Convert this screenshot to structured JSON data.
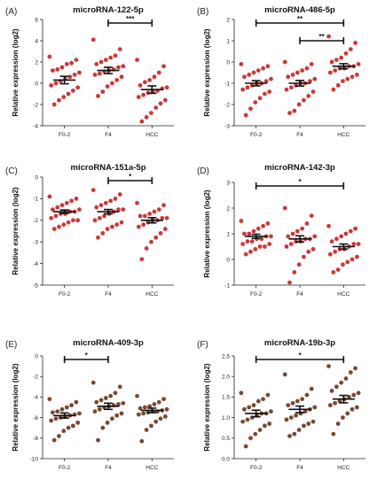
{
  "chart_data": [
    {
      "type": "scatter",
      "panel": "(A)",
      "title": "microRNA-122-5p",
      "ylabel": "Relative expression",
      "ylabel_unit": "(log2)",
      "categories": [
        "F0-2",
        "F4",
        "HCC"
      ],
      "ylim": [
        -4,
        6
      ],
      "yticks": [
        -4,
        -2,
        0,
        2,
        4,
        6
      ],
      "dot_color": "#c62828",
      "series": [
        {
          "values": [
            2.5,
            2.2,
            1.9,
            1.8,
            1.5,
            1.3,
            1.2,
            1.0,
            0.8,
            0.6,
            0.4,
            0.2,
            0.0,
            -0.2,
            -0.4,
            -0.7,
            -1.0,
            -1.3,
            -1.6,
            -2.0
          ],
          "mean": 0.3,
          "sem": 0.35
        },
        {
          "values": [
            4.1,
            3.2,
            2.6,
            2.4,
            2.2,
            2.0,
            1.8,
            1.6,
            1.5,
            1.3,
            1.2,
            1.1,
            0.9,
            0.8,
            0.6,
            0.3,
            0.0,
            -0.3,
            -0.8,
            -1.2
          ],
          "mean": 1.2,
          "sem": 0.3
        },
        {
          "values": [
            2.2,
            1.6,
            1.0,
            0.6,
            0.3,
            0.1,
            -0.2,
            -0.4,
            -0.5,
            -0.7,
            -0.8,
            -0.9,
            -1.1,
            -1.3,
            -1.6,
            -1.9,
            -2.3,
            -2.8,
            -3.2,
            -3.6
          ],
          "mean": -0.6,
          "sem": 0.35
        }
      ],
      "significance": [
        {
          "from": 1,
          "to": 2,
          "label": "***"
        }
      ]
    },
    {
      "type": "scatter",
      "panel": "(B)",
      "title": "microRNA-486-5p",
      "ylabel": "Relative expression",
      "ylabel_unit": "(log2)",
      "categories": [
        "F0-2",
        "F4",
        "HCC"
      ],
      "ylim": [
        -3,
        2
      ],
      "yticks": [
        -3,
        -2,
        -1,
        0,
        1,
        2
      ],
      "dot_color": "#c62828",
      "series": [
        {
          "values": [
            -0.1,
            -0.2,
            -0.3,
            -0.4,
            -0.5,
            -0.6,
            -0.7,
            -0.8,
            -0.9,
            -1.0,
            -1.0,
            -1.1,
            -1.2,
            -1.3,
            -1.4,
            -1.5,
            -1.7,
            -1.9,
            -2.2,
            -2.5
          ],
          "mean": -1.0,
          "sem": 0.12
        },
        {
          "values": [
            0.0,
            -0.1,
            -0.3,
            -0.4,
            -0.5,
            -0.6,
            -0.7,
            -0.8,
            -0.9,
            -1.0,
            -1.0,
            -1.1,
            -1.2,
            -1.3,
            -1.4,
            -1.6,
            -1.8,
            -2.0,
            -2.3,
            -2.4
          ],
          "mean": -1.0,
          "sem": 0.13
        },
        {
          "values": [
            1.2,
            0.9,
            0.6,
            0.4,
            0.2,
            0.1,
            0.0,
            -0.1,
            -0.2,
            -0.2,
            -0.3,
            -0.3,
            -0.4,
            -0.5,
            -0.6,
            -0.7,
            -0.8,
            -0.9,
            -1.1,
            -1.3
          ],
          "mean": -0.2,
          "sem": 0.12
        }
      ],
      "significance": [
        {
          "from": 0,
          "to": 2,
          "label": "**"
        },
        {
          "from": 1,
          "to": 2,
          "label": "**"
        }
      ]
    },
    {
      "type": "scatter",
      "panel": "(C)",
      "title": "microRNA-151a-5p",
      "ylabel": "Relative expression",
      "ylabel_unit": "(log2)",
      "categories": [
        "F0-2",
        "F4",
        "HCC"
      ],
      "ylim": [
        -5,
        0
      ],
      "yticks": [
        -5,
        -4,
        -3,
        -2,
        -1,
        0
      ],
      "dot_color": "#c62828",
      "series": [
        {
          "values": [
            -0.9,
            -1.0,
            -1.1,
            -1.2,
            -1.3,
            -1.4,
            -1.5,
            -1.5,
            -1.6,
            -1.6,
            -1.7,
            -1.7,
            -1.8,
            -1.9,
            -2.0,
            -2.0,
            -2.1,
            -2.2,
            -2.3,
            -2.4
          ],
          "mean": -1.6,
          "sem": 0.08
        },
        {
          "values": [
            -0.6,
            -0.8,
            -1.0,
            -1.1,
            -1.2,
            -1.3,
            -1.4,
            -1.5,
            -1.5,
            -1.6,
            -1.7,
            -1.8,
            -1.9,
            -2.0,
            -2.1,
            -2.2,
            -2.3,
            -2.4,
            -2.6,
            -2.8
          ],
          "mean": -1.6,
          "sem": 0.1
        },
        {
          "values": [
            -1.2,
            -1.3,
            -1.5,
            -1.6,
            -1.7,
            -1.8,
            -1.8,
            -1.9,
            -1.9,
            -2.0,
            -2.0,
            -2.1,
            -2.2,
            -2.3,
            -2.4,
            -2.6,
            -2.8,
            -3.0,
            -3.3,
            -3.8
          ],
          "mean": -2.0,
          "sem": 0.12
        }
      ],
      "significance": [
        {
          "from": 1,
          "to": 2,
          "label": "*"
        }
      ]
    },
    {
      "type": "scatter",
      "panel": "(D)",
      "title": "microRNA-142-3p",
      "ylabel": "Relative expression",
      "ylabel_unit": "(log2)",
      "categories": [
        "F0-2",
        "F4",
        "HCC"
      ],
      "ylim": [
        -1,
        3
      ],
      "yticks": [
        -1,
        0,
        1,
        2,
        3
      ],
      "dot_color": "#c62828",
      "series": [
        {
          "values": [
            1.5,
            1.4,
            1.3,
            1.2,
            1.1,
            1.0,
            1.0,
            0.9,
            0.9,
            0.8,
            0.8,
            0.7,
            0.7,
            0.6,
            0.6,
            0.5,
            0.5,
            0.4,
            0.3,
            0.2
          ],
          "mean": 0.9,
          "sem": 0.08
        },
        {
          "values": [
            2.0,
            1.7,
            1.4,
            1.2,
            1.1,
            1.0,
            0.9,
            0.9,
            0.8,
            0.8,
            0.7,
            0.7,
            0.6,
            0.5,
            0.4,
            0.3,
            0.1,
            -0.2,
            -0.5,
            -0.9
          ],
          "mean": 0.8,
          "sem": 0.12
        },
        {
          "values": [
            1.3,
            1.2,
            1.1,
            1.0,
            0.9,
            0.8,
            0.7,
            0.6,
            0.6,
            0.5,
            0.4,
            0.4,
            0.3,
            0.2,
            0.1,
            0.0,
            -0.1,
            -0.2,
            -0.4,
            -0.5
          ],
          "mean": 0.5,
          "sem": 0.1
        }
      ],
      "significance": [
        {
          "from": 0,
          "to": 2,
          "label": "*"
        }
      ]
    },
    {
      "type": "scatter",
      "panel": "(E)",
      "title": "microRNA-409-3p",
      "ylabel": "Relative expression",
      "ylabel_unit": "(log2)",
      "categories": [
        "F0-2",
        "F4",
        "HCC"
      ],
      "ylim": [
        -10,
        0
      ],
      "yticks": [
        -10,
        -8,
        -6,
        -4,
        -2,
        0
      ],
      "dot_color": "#6d3a1f",
      "series": [
        {
          "values": [
            -4.2,
            -4.5,
            -4.8,
            -5.0,
            -5.2,
            -5.4,
            -5.5,
            -5.6,
            -5.7,
            -5.8,
            -5.9,
            -6.0,
            -6.1,
            -6.3,
            -6.5,
            -6.8,
            -7.0,
            -7.3,
            -7.8,
            -8.2
          ],
          "mean": -5.8,
          "sem": 0.25
        },
        {
          "values": [
            -2.6,
            -3.0,
            -3.6,
            -3.9,
            -4.1,
            -4.3,
            -4.5,
            -4.6,
            -4.7,
            -4.8,
            -4.9,
            -5.0,
            -5.2,
            -5.4,
            -5.6,
            -5.8,
            -6.1,
            -6.5,
            -7.0,
            -8.2
          ],
          "mean": -4.9,
          "sem": 0.3
        },
        {
          "values": [
            -3.9,
            -4.2,
            -4.5,
            -4.7,
            -4.9,
            -5.0,
            -5.1,
            -5.2,
            -5.3,
            -5.4,
            -5.4,
            -5.5,
            -5.6,
            -5.7,
            -5.9,
            -6.1,
            -6.4,
            -6.8,
            -7.2,
            -8.3
          ],
          "mean": -5.3,
          "sem": 0.22
        }
      ],
      "significance": [
        {
          "from": 0,
          "to": 1,
          "label": "*"
        }
      ]
    },
    {
      "type": "scatter",
      "panel": "(F)",
      "title": "microRNA-19b-3p",
      "ylabel": "Relative expression",
      "ylabel_unit": "(log2)",
      "categories": [
        "F0-2",
        "F4",
        "HCC"
      ],
      "ylim": [
        0.0,
        2.5
      ],
      "yticks": [
        0.0,
        0.5,
        1.0,
        1.5,
        2.0,
        2.5
      ],
      "dot_color": "#6d3a1f",
      "series": [
        {
          "values": [
            1.6,
            1.55,
            1.45,
            1.4,
            1.3,
            1.25,
            1.2,
            1.15,
            1.1,
            1.1,
            1.05,
            1.0,
            0.95,
            0.9,
            0.85,
            0.8,
            0.7,
            0.6,
            0.5,
            0.3
          ],
          "mean": 1.1,
          "sem": 0.08
        },
        {
          "values": [
            2.05,
            1.7,
            1.55,
            1.45,
            1.4,
            1.35,
            1.3,
            1.25,
            1.2,
            1.15,
            1.1,
            1.05,
            1.0,
            0.95,
            0.9,
            0.85,
            0.8,
            0.7,
            0.6,
            0.55
          ],
          "mean": 1.2,
          "sem": 0.08
        },
        {
          "values": [
            2.25,
            2.2,
            2.1,
            1.95,
            1.85,
            1.75,
            1.65,
            1.6,
            1.55,
            1.5,
            1.45,
            1.4,
            1.35,
            1.3,
            1.25,
            1.2,
            1.1,
            1.0,
            0.85,
            0.6
          ],
          "mean": 1.45,
          "sem": 0.09
        }
      ],
      "significance": [
        {
          "from": 0,
          "to": 2,
          "label": "*"
        }
      ]
    }
  ]
}
